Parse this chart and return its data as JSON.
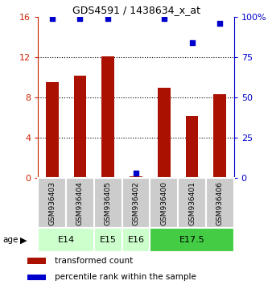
{
  "title": "GDS4591 / 1438634_x_at",
  "samples": [
    "GSM936403",
    "GSM936404",
    "GSM936405",
    "GSM936402",
    "GSM936400",
    "GSM936401",
    "GSM936406"
  ],
  "transformed_count": [
    9.5,
    10.2,
    12.1,
    0.2,
    9.0,
    6.2,
    8.3
  ],
  "percentile_rank": [
    99,
    99,
    99,
    3,
    99,
    84,
    96
  ],
  "age_groups": [
    {
      "label": "E14",
      "start": 0,
      "end": 2,
      "color": "#ccffcc"
    },
    {
      "label": "E15",
      "start": 2,
      "end": 3,
      "color": "#ccffcc"
    },
    {
      "label": "E16",
      "start": 3,
      "end": 4,
      "color": "#ccffcc"
    },
    {
      "label": "E17.5",
      "start": 4,
      "end": 7,
      "color": "#44cc44"
    }
  ],
  "bar_color": "#aa1100",
  "dot_color": "#0000cc",
  "ylim_left": [
    0,
    16
  ],
  "ylim_right": [
    0,
    100
  ],
  "yticks_left": [
    0,
    4,
    8,
    12,
    16
  ],
  "yticks_right": [
    0,
    25,
    50,
    75,
    100
  ],
  "ylabel_left_color": "#cc2200",
  "ylabel_right_color": "#0000cc",
  "grid_color": "#000000",
  "sample_bg_color": "#cccccc",
  "legend_items": [
    {
      "color": "#aa1100",
      "label": "transformed count"
    },
    {
      "color": "#0000cc",
      "label": "percentile rank within the sample"
    }
  ]
}
